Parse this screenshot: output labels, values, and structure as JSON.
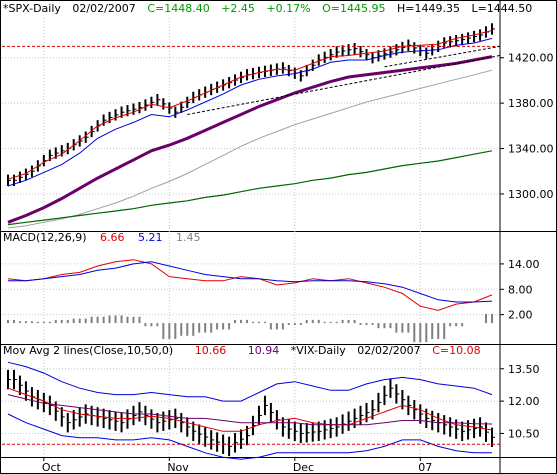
{
  "colors": {
    "price_bar": "#000000",
    "sma10": "#e00000",
    "sma20": "#0000dd",
    "sma50": "#6a006a",
    "sma100": "#a0a0a0",
    "sma200": "#006600",
    "macd_line": "#e00000",
    "signal_line": "#0000dd",
    "histogram": "#808080",
    "vix_bar": "#000000",
    "vix_ma10": "#e00000",
    "vix_ma50": "#6a006a",
    "vix_band": "#0000dd",
    "dashed_red": "#dd0000",
    "grid": "#c8c8c8"
  },
  "header": {
    "symbol": "*SPX-Daily",
    "date": "02/02/2007",
    "close": "C=1448.40",
    "change": "+2.45",
    "change_pct": "+0.17%",
    "open": "O=1445.95",
    "high": "H=1449.35",
    "low": "L=1444.50"
  },
  "macd_header": {
    "title": "MACD(12,26,9)",
    "v1": "6.66",
    "v2": "5.21",
    "v3": "1.45"
  },
  "vix_header": {
    "title": "Mov Avg 2 lines(Close,10,50,0)",
    "v1": "10.66",
    "v2": "10.94",
    "symbol": "*VIX-Daily",
    "date": "02/02/2007",
    "close": "C=10.08"
  },
  "chart_data": [
    {
      "type": "line",
      "panel": "price",
      "y_ticks": [
        "1420.00",
        "1380.00",
        "1340.00",
        "1300.00"
      ],
      "ylim": [
        1270,
        1455
      ],
      "resistance_line": 1430,
      "series": [
        {
          "key": "sma10",
          "values": [
            1313,
            1318,
            1328,
            1335,
            1347,
            1360,
            1367,
            1372,
            1379,
            1376,
            1382,
            1389,
            1396,
            1403,
            1407,
            1410,
            1409,
            1415,
            1421,
            1422,
            1424,
            1426,
            1430,
            1431,
            1432,
            1437,
            1440,
            1444
          ]
        },
        {
          "key": "sma20",
          "values": [
            1307,
            1312,
            1319,
            1326,
            1336,
            1349,
            1357,
            1363,
            1370,
            1368,
            1374,
            1381,
            1388,
            1396,
            1401,
            1404,
            1406,
            1410,
            1416,
            1418,
            1418,
            1422,
            1425,
            1426,
            1427,
            1431,
            1433,
            1437
          ]
        },
        {
          "key": "sma50",
          "values": [
            1275,
            1281,
            1288,
            1296,
            1305,
            1314,
            1322,
            1330,
            1338,
            1343,
            1349,
            1356,
            1363,
            1370,
            1377,
            1383,
            1389,
            1394,
            1399,
            1403,
            1405,
            1407,
            1409,
            1411,
            1413,
            1415,
            1418,
            1421
          ]
        },
        {
          "key": "sma100",
          "values": [
            1270,
            1272,
            1275,
            1278,
            1282,
            1287,
            1292,
            1298,
            1305,
            1311,
            1318,
            1326,
            1334,
            1342,
            1349,
            1355,
            1361,
            1366,
            1371,
            1376,
            1381,
            1385,
            1389,
            1393,
            1397,
            1401,
            1405,
            1409
          ]
        },
        {
          "key": "sma200",
          "values": [
            1273,
            1275,
            1277,
            1279,
            1281,
            1283,
            1285,
            1287,
            1290,
            1292,
            1294,
            1297,
            1299,
            1302,
            1305,
            1307,
            1309,
            1312,
            1314,
            1317,
            1319,
            1322,
            1325,
            1327,
            1329,
            1332,
            1335,
            1338
          ]
        }
      ],
      "bars_close": [
        1312,
        1320,
        1334,
        1340,
        1350,
        1365,
        1372,
        1376,
        1383,
        1372,
        1385,
        1392,
        1398,
        1405,
        1408,
        1411,
        1404,
        1418,
        1425,
        1428,
        1420,
        1425,
        1431,
        1424,
        1433,
        1436,
        1440,
        1448
      ]
    },
    {
      "type": "line",
      "panel": "macd",
      "y_ticks": [
        "14.00",
        "8.00",
        "2.00"
      ],
      "ylim": [
        -4,
        18
      ],
      "series": [
        {
          "key": "macd",
          "values": [
            10.5,
            10.0,
            10.5,
            11.5,
            12.0,
            13.5,
            14.5,
            15.0,
            14.0,
            11.0,
            10.5,
            10.0,
            10.0,
            11.0,
            10.5,
            9.0,
            9.5,
            10.5,
            10.0,
            10.5,
            9.5,
            8.5,
            7.0,
            4.0,
            3.0,
            4.5,
            5.0,
            6.66
          ]
        },
        {
          "key": "signal",
          "values": [
            10.0,
            10.0,
            10.5,
            11.0,
            11.5,
            12.5,
            13.0,
            14.0,
            14.5,
            13.5,
            12.5,
            11.5,
            11.0,
            10.5,
            10.5,
            10.0,
            9.8,
            10.0,
            10.0,
            10.0,
            9.8,
            9.3,
            8.5,
            7.0,
            5.5,
            5.0,
            5.0,
            5.21
          ]
        }
      ],
      "histogram": [
        0.5,
        0.3,
        0.2,
        0.5,
        0.7,
        1.0,
        1.2,
        1.0,
        -0.5,
        -2.5,
        -2.0,
        -1.5,
        -1.0,
        0.5,
        0.2,
        -1.0,
        -0.3,
        0.5,
        0.2,
        0.5,
        -0.3,
        -0.8,
        -1.5,
        -3.0,
        -2.5,
        -0.5,
        0.0,
        1.45
      ]
    },
    {
      "type": "line",
      "panel": "vix",
      "y_ticks": [
        "13.50",
        "12.00",
        "10.50"
      ],
      "ylim": [
        9.5,
        14.0
      ],
      "support_line": 10.0,
      "series": [
        {
          "key": "ma10",
          "values": [
            12.6,
            12.3,
            12.0,
            11.6,
            11.4,
            11.3,
            11.2,
            11.2,
            11.3,
            11.2,
            11.0,
            10.8,
            10.6,
            10.6,
            10.9,
            11.1,
            11.2,
            11.0,
            10.9,
            10.9,
            11.2,
            11.5,
            11.8,
            11.6,
            11.2,
            10.9,
            10.8,
            10.66
          ]
        },
        {
          "key": "ma50",
          "values": [
            12.3,
            12.1,
            11.9,
            11.8,
            11.7,
            11.6,
            11.5,
            11.4,
            11.4,
            11.3,
            11.2,
            11.2,
            11.1,
            11.0,
            11.0,
            11.0,
            11.0,
            10.9,
            10.9,
            10.9,
            10.9,
            11.0,
            11.1,
            11.1,
            11.0,
            11.0,
            10.95,
            10.94
          ]
        },
        {
          "key": "band_upper",
          "values": [
            13.8,
            13.6,
            13.3,
            12.9,
            12.6,
            12.4,
            12.3,
            12.3,
            12.4,
            12.3,
            12.2,
            12.2,
            12.0,
            12.0,
            12.4,
            12.8,
            12.9,
            12.7,
            12.5,
            12.5,
            12.8,
            13.0,
            13.1,
            13.0,
            12.8,
            12.7,
            12.6,
            12.3
          ]
        },
        {
          "key": "band_lower",
          "values": [
            11.4,
            11.0,
            10.7,
            10.4,
            10.3,
            10.3,
            10.2,
            10.2,
            10.3,
            10.2,
            9.9,
            9.6,
            9.4,
            9.3,
            9.4,
            9.6,
            9.6,
            9.6,
            9.6,
            9.6,
            9.7,
            9.9,
            10.2,
            10.2,
            9.9,
            9.7,
            9.6,
            9.6
          ]
        }
      ],
      "bars_close": [
        13.0,
        12.2,
        11.8,
        11.0,
        11.4,
        11.2,
        11.0,
        11.5,
        11.0,
        11.2,
        10.6,
        10.2,
        9.9,
        10.4,
        11.8,
        10.8,
        10.5,
        10.6,
        10.8,
        11.2,
        11.6,
        12.6,
        11.8,
        11.2,
        10.9,
        10.6,
        10.8,
        10.08
      ]
    }
  ],
  "x_axis": {
    "labels": [
      "Oct",
      "Nov",
      "Dec",
      "07"
    ]
  }
}
